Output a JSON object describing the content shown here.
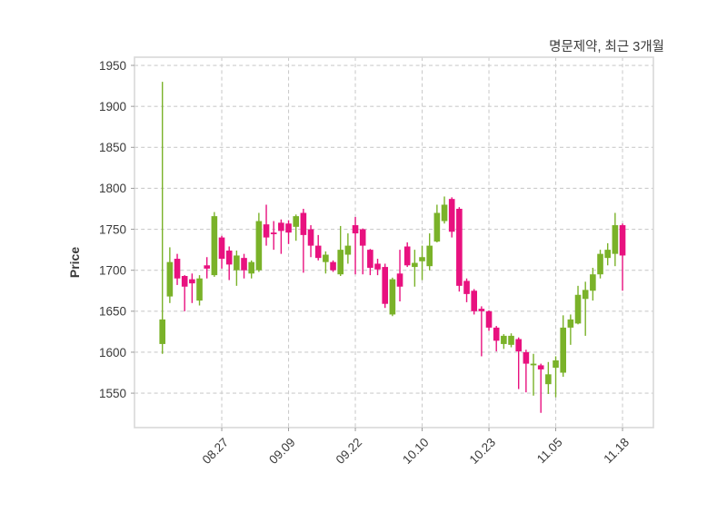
{
  "title": "명문제약, 최근 3개월",
  "chart_data": {
    "type": "candlestick",
    "title": "명문제약, 최근 3개월",
    "ylabel": "Price",
    "xlabel": "",
    "grid": true,
    "legend_position": "none",
    "ylim": [
      1508,
      1960
    ],
    "yticks": [
      1950,
      1900,
      1850,
      1800,
      1750,
      1700,
      1650,
      1600,
      1550
    ],
    "xticks": [
      {
        "index": 8,
        "label": "08.27"
      },
      {
        "index": 17,
        "label": "09.09"
      },
      {
        "index": 26,
        "label": "09.22"
      },
      {
        "index": 35,
        "label": "10.10"
      },
      {
        "index": 44,
        "label": "10.23"
      },
      {
        "index": 53,
        "label": "11.05"
      },
      {
        "index": 62,
        "label": "11.18"
      }
    ],
    "up_color": "#7ab229",
    "down_color": "#e8117f",
    "grid_color": "#cccccc",
    "border_color": "#d9d9d9",
    "text_color": "#3a3a3a",
    "candles_ohlc": [
      [
        1610,
        1930,
        1598,
        1640
      ],
      [
        1668,
        1728,
        1660,
        1710
      ],
      [
        1714,
        1720,
        1682,
        1690
      ],
      [
        1693,
        1694,
        1650,
        1680
      ],
      [
        1689,
        1696,
        1660,
        1684
      ],
      [
        1663,
        1694,
        1657,
        1690
      ],
      [
        1706,
        1716,
        1690,
        1702
      ],
      [
        1694,
        1771,
        1692,
        1766
      ],
      [
        1740,
        1742,
        1702,
        1714
      ],
      [
        1724,
        1729,
        1688,
        1707
      ],
      [
        1700,
        1724,
        1681,
        1718
      ],
      [
        1715,
        1720,
        1690,
        1700
      ],
      [
        1696,
        1712,
        1690,
        1710
      ],
      [
        1700,
        1770,
        1698,
        1760
      ],
      [
        1756,
        1780,
        1730,
        1740
      ],
      [
        1746,
        1760,
        1725,
        1744
      ],
      [
        1758,
        1762,
        1720,
        1748
      ],
      [
        1757,
        1761,
        1732,
        1746
      ],
      [
        1753,
        1768,
        1736,
        1766
      ],
      [
        1770,
        1775,
        1697,
        1743
      ],
      [
        1750,
        1755,
        1716,
        1730
      ],
      [
        1730,
        1743,
        1712,
        1715
      ],
      [
        1710,
        1723,
        1696,
        1719
      ],
      [
        1710,
        1712,
        1698,
        1700
      ],
      [
        1695,
        1754,
        1693,
        1725
      ],
      [
        1719,
        1745,
        1708,
        1730
      ],
      [
        1755,
        1765,
        1695,
        1745
      ],
      [
        1750,
        1751,
        1695,
        1730
      ],
      [
        1725,
        1726,
        1694,
        1703
      ],
      [
        1708,
        1714,
        1694,
        1701
      ],
      [
        1704,
        1708,
        1654,
        1659
      ],
      [
        1646,
        1691,
        1644,
        1689
      ],
      [
        1696,
        1725,
        1662,
        1680
      ],
      [
        1729,
        1734,
        1704,
        1706
      ],
      [
        1704,
        1725,
        1680,
        1709
      ],
      [
        1711,
        1730,
        1688,
        1716
      ],
      [
        1705,
        1745,
        1700,
        1730
      ],
      [
        1735,
        1780,
        1734,
        1770
      ],
      [
        1760,
        1790,
        1757,
        1780
      ],
      [
        1787,
        1789,
        1740,
        1747
      ],
      [
        1775,
        1777,
        1674,
        1681
      ],
      [
        1687,
        1690,
        1661,
        1671
      ],
      [
        1675,
        1677,
        1646,
        1650
      ],
      [
        1653,
        1656,
        1595,
        1650
      ],
      [
        1650,
        1651,
        1626,
        1630
      ],
      [
        1630,
        1632,
        1601,
        1614
      ],
      [
        1610,
        1622,
        1604,
        1620
      ],
      [
        1609,
        1623,
        1606,
        1620
      ],
      [
        1616,
        1618,
        1555,
        1601
      ],
      [
        1600,
        1603,
        1551,
        1586
      ],
      [
        1584,
        1598,
        1547,
        1586
      ],
      [
        1584,
        1586,
        1526,
        1579
      ],
      [
        1561,
        1588,
        1549,
        1573
      ],
      [
        1581,
        1595,
        1545,
        1590
      ],
      [
        1575,
        1645,
        1570,
        1630
      ],
      [
        1630,
        1646,
        1609,
        1640
      ],
      [
        1635,
        1681,
        1634,
        1670
      ],
      [
        1665,
        1686,
        1620,
        1676
      ],
      [
        1675,
        1703,
        1663,
        1695
      ],
      [
        1695,
        1725,
        1690,
        1720
      ],
      [
        1715,
        1733,
        1706,
        1725
      ],
      [
        1720,
        1770,
        1705,
        1755
      ],
      [
        1755,
        1757,
        1675,
        1718
      ]
    ]
  }
}
